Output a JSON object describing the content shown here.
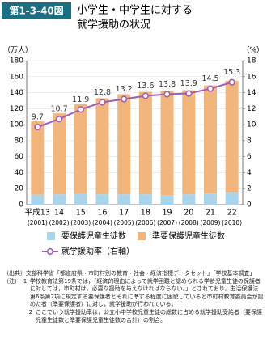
{
  "chart_data": {
    "type": "bar-line",
    "figure_label": "第1-3-40図",
    "title": [
      "小学生・中学生に対する",
      "就学援助の状況"
    ],
    "y_unit": "（万人）",
    "y2_unit": "（%）",
    "categories": [
      "平成13",
      "14",
      "15",
      "16",
      "17",
      "18",
      "19",
      "20",
      "21",
      "22"
    ],
    "category_years": [
      "(2001)",
      "(2002)",
      "(2003)",
      "(2004)",
      "(2005)",
      "(2006)",
      "(2007)",
      "(2008)",
      "(2009)",
      "(2010)"
    ],
    "series": [
      {
        "name": "要保護児童生徒数",
        "color": "#a9d5ec",
        "values": [
          12.5,
          13,
          13.5,
          13,
          13,
          13,
          12,
          13,
          14,
          15
        ]
      },
      {
        "name": "準要保護児童生徒数",
        "color": "#f2b57c",
        "values": [
          92,
          102,
          112,
          120,
          125,
          128,
          130,
          130,
          135,
          140
        ]
      },
      {
        "name": "就学援助率（右軸）",
        "color": "#a35db5",
        "axis": "y2",
        "values": [
          9.7,
          10.7,
          11.9,
          12.8,
          13.2,
          13.6,
          13.8,
          13.9,
          14.5,
          15.3
        ]
      }
    ],
    "ylim": [
      0,
      180
    ],
    "yticks": [
      0,
      20,
      40,
      60,
      80,
      100,
      120,
      140,
      160,
      180
    ],
    "y2lim": [
      0,
      18
    ],
    "y2ticks": [
      0,
      2,
      4,
      6,
      8,
      10,
      12,
      14,
      16,
      18
    ],
    "grid": true
  },
  "source": {
    "label": "（出典）",
    "text": "文部科学省「都道府県・市町村別の教育・社会・経済指標データセット」「学校基本調査」"
  },
  "notes": {
    "label": "（注）",
    "items": [
      {
        "number": "1",
        "text": "学校教育法第19条では，「経済的理由によって就学困難と認められる学齢児童生徒の保護者に対しては，市町村は，必要な援助を与えなければならない。」とされており，生活保護法第6条第2項に規定する要保護者とそれに準ずる程度に困窮していると市町村教育委員会が認めた者（準要保護者）に対し，就学援助が行われている。"
      },
      {
        "number": "2",
        "text": "ここでいう就学援助率は，公立小中学校児童生徒の総数に占める就学援助受給者（要保護児童生徒数と準要保護児童生徒数の合計）の割合。"
      }
    ]
  }
}
